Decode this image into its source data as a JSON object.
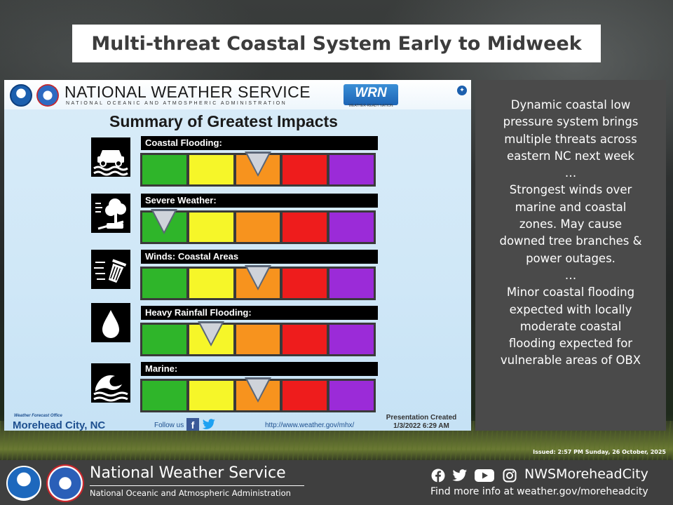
{
  "slide_title": "Multi-threat Coastal System Early to Midweek",
  "graphic": {
    "agency_name": "NATIONAL WEATHER SERVICE",
    "agency_sub": "NATIONAL OCEANIC AND ATMOSPHERIC ADMINISTRATION",
    "wrn_logo_text": "WRN",
    "wrn_sub": "WEATHER-READY NATION",
    "summary_title": "Summary of Greatest Impacts",
    "scale_colors": [
      "#2fb52a",
      "#f6f629",
      "#f7931e",
      "#ee1c1c",
      "#9b2bd8"
    ],
    "impacts": [
      {
        "label": "Coastal Flooding:",
        "icon": "car-flood-icon",
        "level_index": 2
      },
      {
        "label": "Severe Weather:",
        "icon": "storm-tree-icon",
        "level_index": 0
      },
      {
        "label": "Winds: Coastal Areas",
        "icon": "wind-trashcan-icon",
        "level_index": 2
      },
      {
        "label": "Heavy Rainfall Flooding:",
        "icon": "raindrop-icon",
        "level_index": 1
      },
      {
        "label": "Marine:",
        "icon": "wave-icon",
        "level_index": 2
      }
    ],
    "footer": {
      "wfo_small": "Weather Forecast Office",
      "wfo_name": "Morehead City, NC",
      "follow": "Follow us",
      "url": "http://www.weather.gov/mhx/",
      "created_label": "Presentation Created",
      "created_date": "1/3/2022 6:29 AM"
    }
  },
  "side_panel": {
    "lines": [
      "Dynamic coastal low",
      "pressure system brings",
      "multiple threats across",
      "eastern NC next week",
      "…",
      "Strongest winds over",
      "marine and coastal",
      "zones. May cause",
      "downed tree branches &",
      "power outages.",
      "…",
      "Minor coastal flooding",
      "expected with locally",
      "moderate coastal",
      "flooding expected for",
      "vulnerable areas of OBX"
    ]
  },
  "issued": "Issued: 2:57 PM Sunday, 26 October, 2025",
  "banner": {
    "title": "National Weather Service",
    "subtitle": "National Oceanic and Atmospheric Administration",
    "handle": "NWSMoreheadCity",
    "more_info": "Find more info at weather.gov/moreheadcity",
    "social_icons": [
      "facebook-icon",
      "twitter-icon",
      "youtube-icon",
      "instagram-icon"
    ]
  }
}
